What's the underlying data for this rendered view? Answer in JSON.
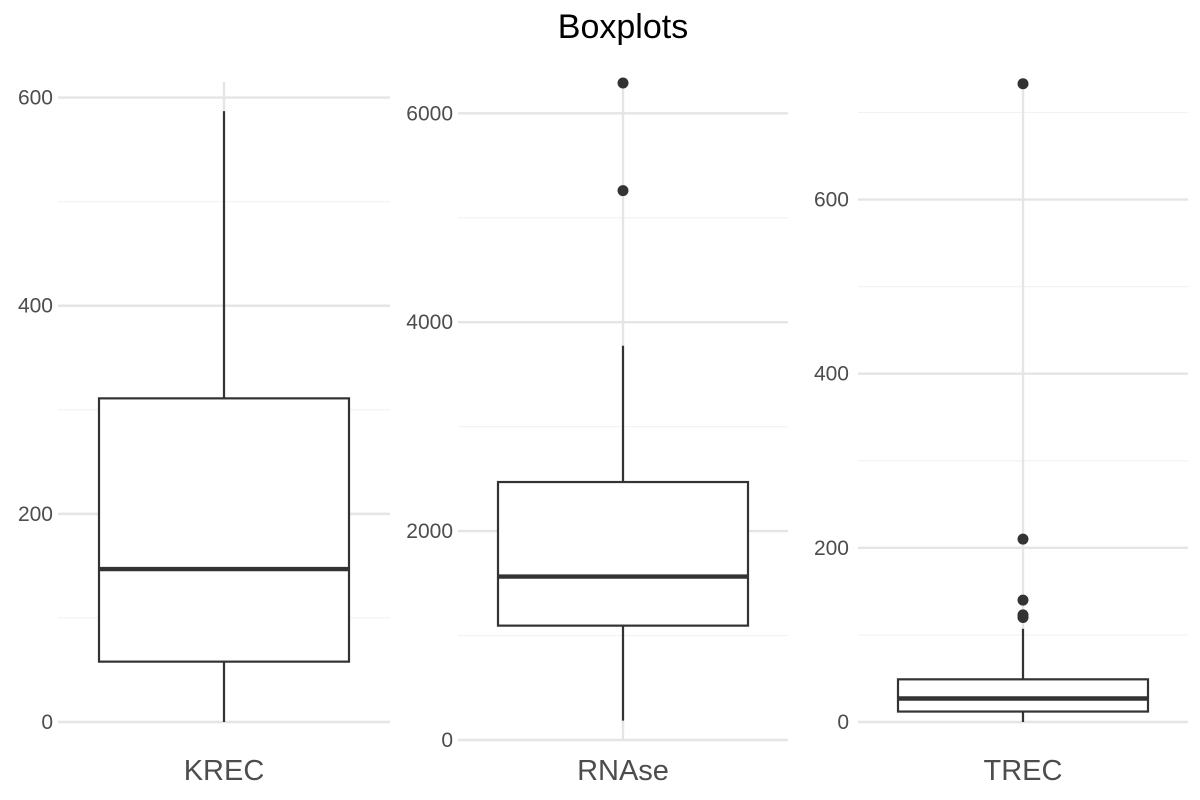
{
  "chart_data": {
    "type": "boxplot",
    "title": "Boxplots",
    "grid": true,
    "legend": "none",
    "colors": {
      "box_line": "#333333",
      "median": "#333333",
      "outlier": "#333333",
      "grid_major": "#e5e5e5",
      "grid_minor": "#f2f2f2",
      "tick_text": "#4d4d4d"
    },
    "panels": [
      {
        "category": "KREC",
        "ylim": [
          0,
          615
        ],
        "yticks": [
          0,
          200,
          400,
          600
        ],
        "ytick_labels": [
          "0",
          "200",
          "400",
          "600"
        ],
        "minor_ticks": [
          100,
          300,
          500
        ],
        "whisker_low": 0,
        "q1": 58,
        "median": 147,
        "q3": 311,
        "whisker_high": 587,
        "outliers": []
      },
      {
        "category": "RNAse",
        "ylim": [
          0,
          6300
        ],
        "yticks": [
          0,
          2000,
          4000,
          6000
        ],
        "ytick_labels": [
          "0",
          "2000",
          "4000",
          "6000"
        ],
        "minor_ticks": [
          1000,
          3000,
          5000
        ],
        "whisker_low": 185,
        "q1": 1095,
        "median": 1565,
        "q3": 2470,
        "whisker_high": 3775,
        "outliers": [
          5260,
          6290
        ]
      },
      {
        "category": "TREC",
        "ylim": [
          0,
          735
        ],
        "yticks": [
          0,
          200,
          400,
          600
        ],
        "ytick_labels": [
          "0",
          "200",
          "400",
          "600"
        ],
        "minor_ticks": [
          100,
          300,
          500,
          700
        ],
        "whisker_low": 0,
        "q1": 12,
        "median": 27,
        "q3": 49,
        "whisker_high": 107,
        "outliers": [
          120,
          123,
          140,
          210,
          733
        ]
      }
    ]
  }
}
